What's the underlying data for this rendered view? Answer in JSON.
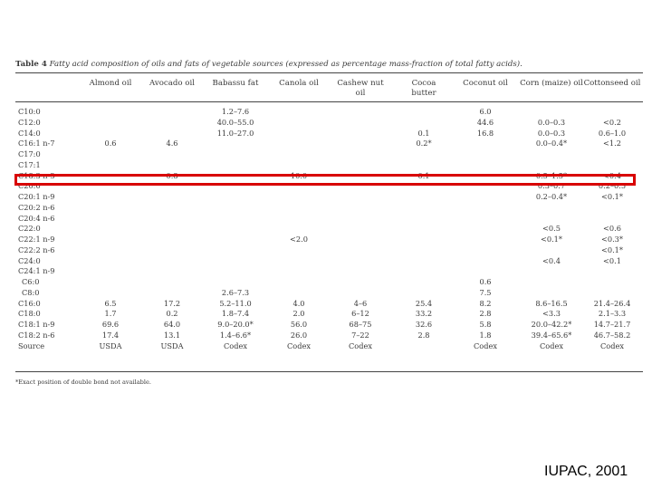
{
  "table": {
    "number": "Table 4",
    "title": "Fatty acid composition of oils and fats of vegetable sources (expressed as percentage mass-fraction of total fatty acids).",
    "columns": [
      "Almond oil",
      "Avocado oil",
      "Babassu fat",
      "Canola oil",
      "Cashew nut oil",
      "Cocoa butter",
      "Coconut oil",
      "Corn (maize) oil",
      "Cottonseed oil"
    ],
    "rows": [
      {
        "label": "C10:0",
        "cells": [
          "",
          "",
          "1.2–7.6",
          "",
          "",
          "",
          "6.0",
          "",
          ""
        ]
      },
      {
        "label": "C12:0",
        "cells": [
          "",
          "",
          "40.0–55.0",
          "",
          "",
          "",
          "44.6",
          "0.0–0.3",
          "<0.2"
        ]
      },
      {
        "label": "C14:0",
        "cells": [
          "",
          "",
          "11.0–27.0",
          "",
          "",
          "0.1",
          "16.8",
          "0.0–0.3",
          "0.6–1.0"
        ]
      },
      {
        "label": "C16:1 n-7",
        "cells": [
          "0.6",
          "4.6",
          "",
          "",
          "",
          "0.2*",
          "",
          "0.0–0.4*",
          "<1.2"
        ]
      },
      {
        "label": "C17:0",
        "cells": [
          "",
          "",
          "",
          "",
          "",
          "",
          "",
          "",
          ""
        ]
      },
      {
        "label": "C17:1",
        "cells": [
          "",
          "",
          "",
          "",
          "",
          "",
          "",
          "",
          ""
        ]
      },
      {
        "label": "C18:3 n-3",
        "cells": [
          "",
          "0.8",
          "",
          "10.0",
          "",
          "0.1",
          "",
          "0.5–1.5*",
          "<0.4"
        ]
      },
      {
        "label": "C20:0",
        "cells": [
          "",
          "",
          "",
          "",
          "",
          "",
          "",
          "0.3–0.7",
          "0.2–0.5"
        ]
      },
      {
        "label": "C20:1 n-9",
        "cells": [
          "",
          "",
          "",
          "",
          "",
          "",
          "",
          "0.2–0.4*",
          "<0.1*"
        ]
      },
      {
        "label": "C20:2 n-6",
        "cells": [
          "",
          "",
          "",
          "",
          "",
          "",
          "",
          "",
          ""
        ]
      },
      {
        "label": "C20:4 n-6",
        "cells": [
          "",
          "",
          "",
          "",
          "",
          "",
          "",
          "",
          ""
        ]
      },
      {
        "label": "C22:0",
        "cells": [
          "",
          "",
          "",
          "",
          "",
          "",
          "",
          "<0.5",
          "<0.6"
        ]
      },
      {
        "label": "C22:1 n-9",
        "cells": [
          "",
          "",
          "",
          "<2.0",
          "",
          "",
          "",
          "<0.1*",
          "<0.3*"
        ]
      },
      {
        "label": "C22:2 n-6",
        "cells": [
          "",
          "",
          "",
          "",
          "",
          "",
          "",
          "",
          "<0.1*"
        ]
      },
      {
        "label": "C24:0",
        "cells": [
          "",
          "",
          "",
          "",
          "",
          "",
          "",
          "<0.4",
          "<0.1"
        ]
      },
      {
        "label": "C24:1 n-9",
        "cells": [
          "",
          "",
          "",
          "",
          "",
          "",
          "",
          "",
          ""
        ]
      },
      {
        "label": "C6:0",
        "cells": [
          "",
          "",
          "",
          "",
          "",
          "",
          "0.6",
          "",
          ""
        ]
      },
      {
        "label": "C8:0",
        "cells": [
          "",
          "",
          "2.6–7.3",
          "",
          "",
          "",
          "7.5",
          "",
          ""
        ]
      },
      {
        "label": "C16:0",
        "cells": [
          "6.5",
          "17.2",
          "5.2–11.0",
          "4.0",
          "4–6",
          "25.4",
          "8.2",
          "8.6–16.5",
          "21.4–26.4"
        ]
      },
      {
        "label": "C18:0",
        "cells": [
          "1.7",
          "0.2",
          "1.8–7.4",
          "2.0",
          "6–12",
          "33.2",
          "2.8",
          "<3.3",
          "2.1–3.3"
        ]
      },
      {
        "label": "C18:1 n-9",
        "cells": [
          "69.6",
          "64.0",
          "9.0–20.0*",
          "56.0",
          "68–75",
          "32.6",
          "5.8",
          "20.0–42.2*",
          "14.7–21.7"
        ]
      },
      {
        "label": "C18:2 n-6",
        "cells": [
          "17.4",
          "13.1",
          "1.4–6.6*",
          "26.0",
          "7–22",
          "2.8",
          "1.8",
          "39.4–65.6*",
          "46.7–58.2"
        ]
      },
      {
        "label": "Source",
        "cells": [
          "USDA",
          "USDA",
          "Codex",
          "Codex",
          "Codex",
          "",
          "Codex",
          "Codex",
          "Codex"
        ]
      }
    ],
    "footnote": "*Exact position of double bond not available."
  },
  "credit": "IUPAC, 2001",
  "highlight_color": "#d80000"
}
